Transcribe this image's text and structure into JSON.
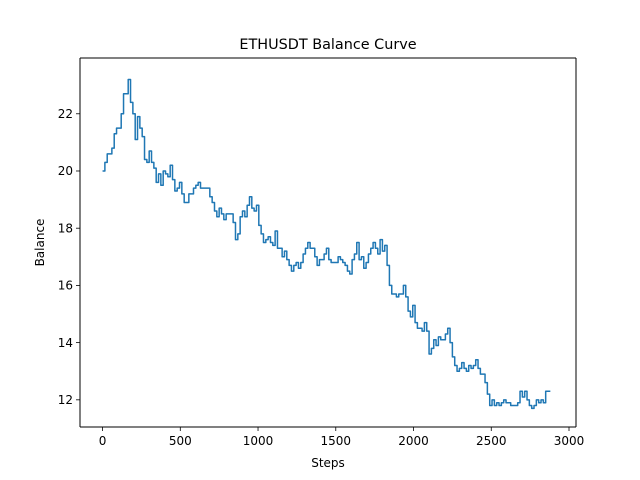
{
  "chart_data": {
    "type": "line",
    "title": "ETHUSDT Balance Curve",
    "xlabel": "Steps",
    "ylabel": "Balance",
    "xlim": [
      -145,
      3045
    ],
    "ylim": [
      11.05,
      23.95
    ],
    "xticks": [
      0,
      500,
      1000,
      1500,
      2000,
      2500,
      3000
    ],
    "xtick_labels": [
      "0",
      "500",
      "1000",
      "1500",
      "2000",
      "2500",
      "3000"
    ],
    "yticks": [
      12,
      14,
      16,
      18,
      20,
      22
    ],
    "ytick_labels": [
      "12",
      "14",
      "16",
      "18",
      "20",
      "22"
    ],
    "grid": false,
    "series": [
      {
        "name": "Balance",
        "color": "#1f77b4",
        "x": [
          0,
          15,
          30,
          45,
          60,
          75,
          90,
          105,
          120,
          135,
          150,
          165,
          180,
          195,
          210,
          225,
          240,
          255,
          270,
          285,
          300,
          315,
          330,
          345,
          360,
          375,
          390,
          405,
          420,
          435,
          450,
          465,
          480,
          495,
          510,
          525,
          540,
          555,
          570,
          585,
          600,
          615,
          630,
          645,
          660,
          675,
          690,
          705,
          720,
          735,
          750,
          765,
          780,
          795,
          810,
          825,
          840,
          855,
          870,
          885,
          900,
          915,
          930,
          945,
          960,
          975,
          990,
          1005,
          1020,
          1035,
          1050,
          1065,
          1080,
          1095,
          1110,
          1125,
          1140,
          1155,
          1170,
          1185,
          1200,
          1215,
          1230,
          1245,
          1260,
          1275,
          1290,
          1305,
          1320,
          1335,
          1350,
          1365,
          1380,
          1395,
          1410,
          1425,
          1440,
          1455,
          1470,
          1485,
          1500,
          1515,
          1530,
          1545,
          1560,
          1575,
          1590,
          1605,
          1620,
          1635,
          1650,
          1665,
          1680,
          1695,
          1710,
          1725,
          1740,
          1755,
          1770,
          1785,
          1800,
          1815,
          1830,
          1845,
          1860,
          1875,
          1890,
          1905,
          1920,
          1935,
          1950,
          1965,
          1980,
          1995,
          2010,
          2025,
          2040,
          2055,
          2070,
          2085,
          2100,
          2115,
          2130,
          2145,
          2160,
          2175,
          2190,
          2205,
          2220,
          2235,
          2250,
          2265,
          2280,
          2295,
          2310,
          2325,
          2340,
          2355,
          2370,
          2385,
          2400,
          2415,
          2430,
          2445,
          2460,
          2475,
          2490,
          2505,
          2520,
          2535,
          2550,
          2565,
          2580,
          2595,
          2610,
          2625,
          2640,
          2655,
          2670,
          2685,
          2700,
          2715,
          2730,
          2745,
          2760,
          2775,
          2790,
          2805,
          2820,
          2835,
          2850,
          2865,
          2880
        ],
        "y": [
          20.0,
          20.3,
          20.6,
          20.6,
          20.8,
          21.3,
          21.5,
          21.5,
          22.0,
          22.7,
          22.7,
          23.2,
          22.4,
          22.0,
          21.1,
          21.9,
          21.5,
          21.2,
          20.4,
          20.3,
          20.7,
          20.3,
          20.1,
          19.6,
          19.9,
          19.5,
          20.0,
          19.9,
          19.8,
          20.2,
          19.7,
          19.3,
          19.4,
          19.6,
          19.2,
          18.9,
          18.9,
          19.2,
          19.2,
          19.4,
          19.5,
          19.6,
          19.4,
          19.4,
          19.4,
          19.4,
          19.1,
          18.9,
          18.6,
          18.4,
          18.7,
          18.5,
          18.3,
          18.5,
          18.5,
          18.5,
          18.2,
          17.6,
          17.8,
          18.4,
          18.6,
          18.4,
          18.8,
          19.1,
          18.7,
          18.6,
          18.8,
          18.1,
          17.8,
          17.5,
          17.6,
          17.7,
          17.5,
          17.4,
          17.9,
          17.3,
          17.3,
          17.0,
          17.2,
          16.9,
          16.7,
          16.5,
          16.7,
          16.8,
          16.6,
          16.8,
          17.1,
          17.3,
          17.5,
          17.3,
          17.3,
          17.0,
          16.7,
          16.9,
          16.9,
          17.1,
          17.3,
          16.9,
          16.8,
          16.8,
          16.8,
          17.0,
          16.9,
          16.8,
          16.7,
          16.5,
          16.4,
          16.9,
          17.1,
          17.5,
          16.9,
          17.0,
          16.6,
          16.8,
          17.1,
          17.3,
          17.5,
          17.3,
          17.1,
          17.6,
          17.2,
          17.4,
          16.7,
          16.0,
          15.7,
          15.7,
          15.6,
          15.7,
          15.7,
          16.0,
          15.6,
          15.1,
          14.9,
          15.3,
          14.7,
          14.5,
          14.5,
          14.4,
          14.7,
          14.4,
          13.6,
          13.8,
          14.1,
          13.9,
          14.2,
          14.1,
          14.1,
          14.3,
          14.5,
          14.0,
          13.5,
          13.2,
          13.0,
          13.1,
          13.3,
          13.1,
          13.0,
          13.2,
          13.1,
          13.2,
          13.4,
          13.1,
          12.9,
          12.9,
          12.6,
          12.2,
          11.8,
          12.0,
          11.8,
          11.9,
          11.8,
          11.9,
          12.0,
          11.9,
          11.9,
          11.8,
          11.8,
          11.8,
          11.9,
          12.3,
          12.1,
          12.3,
          12.0,
          11.8,
          11.7,
          11.8,
          12.0,
          11.9,
          12.0,
          11.9,
          12.3,
          12.3,
          12.3
        ]
      }
    ]
  }
}
